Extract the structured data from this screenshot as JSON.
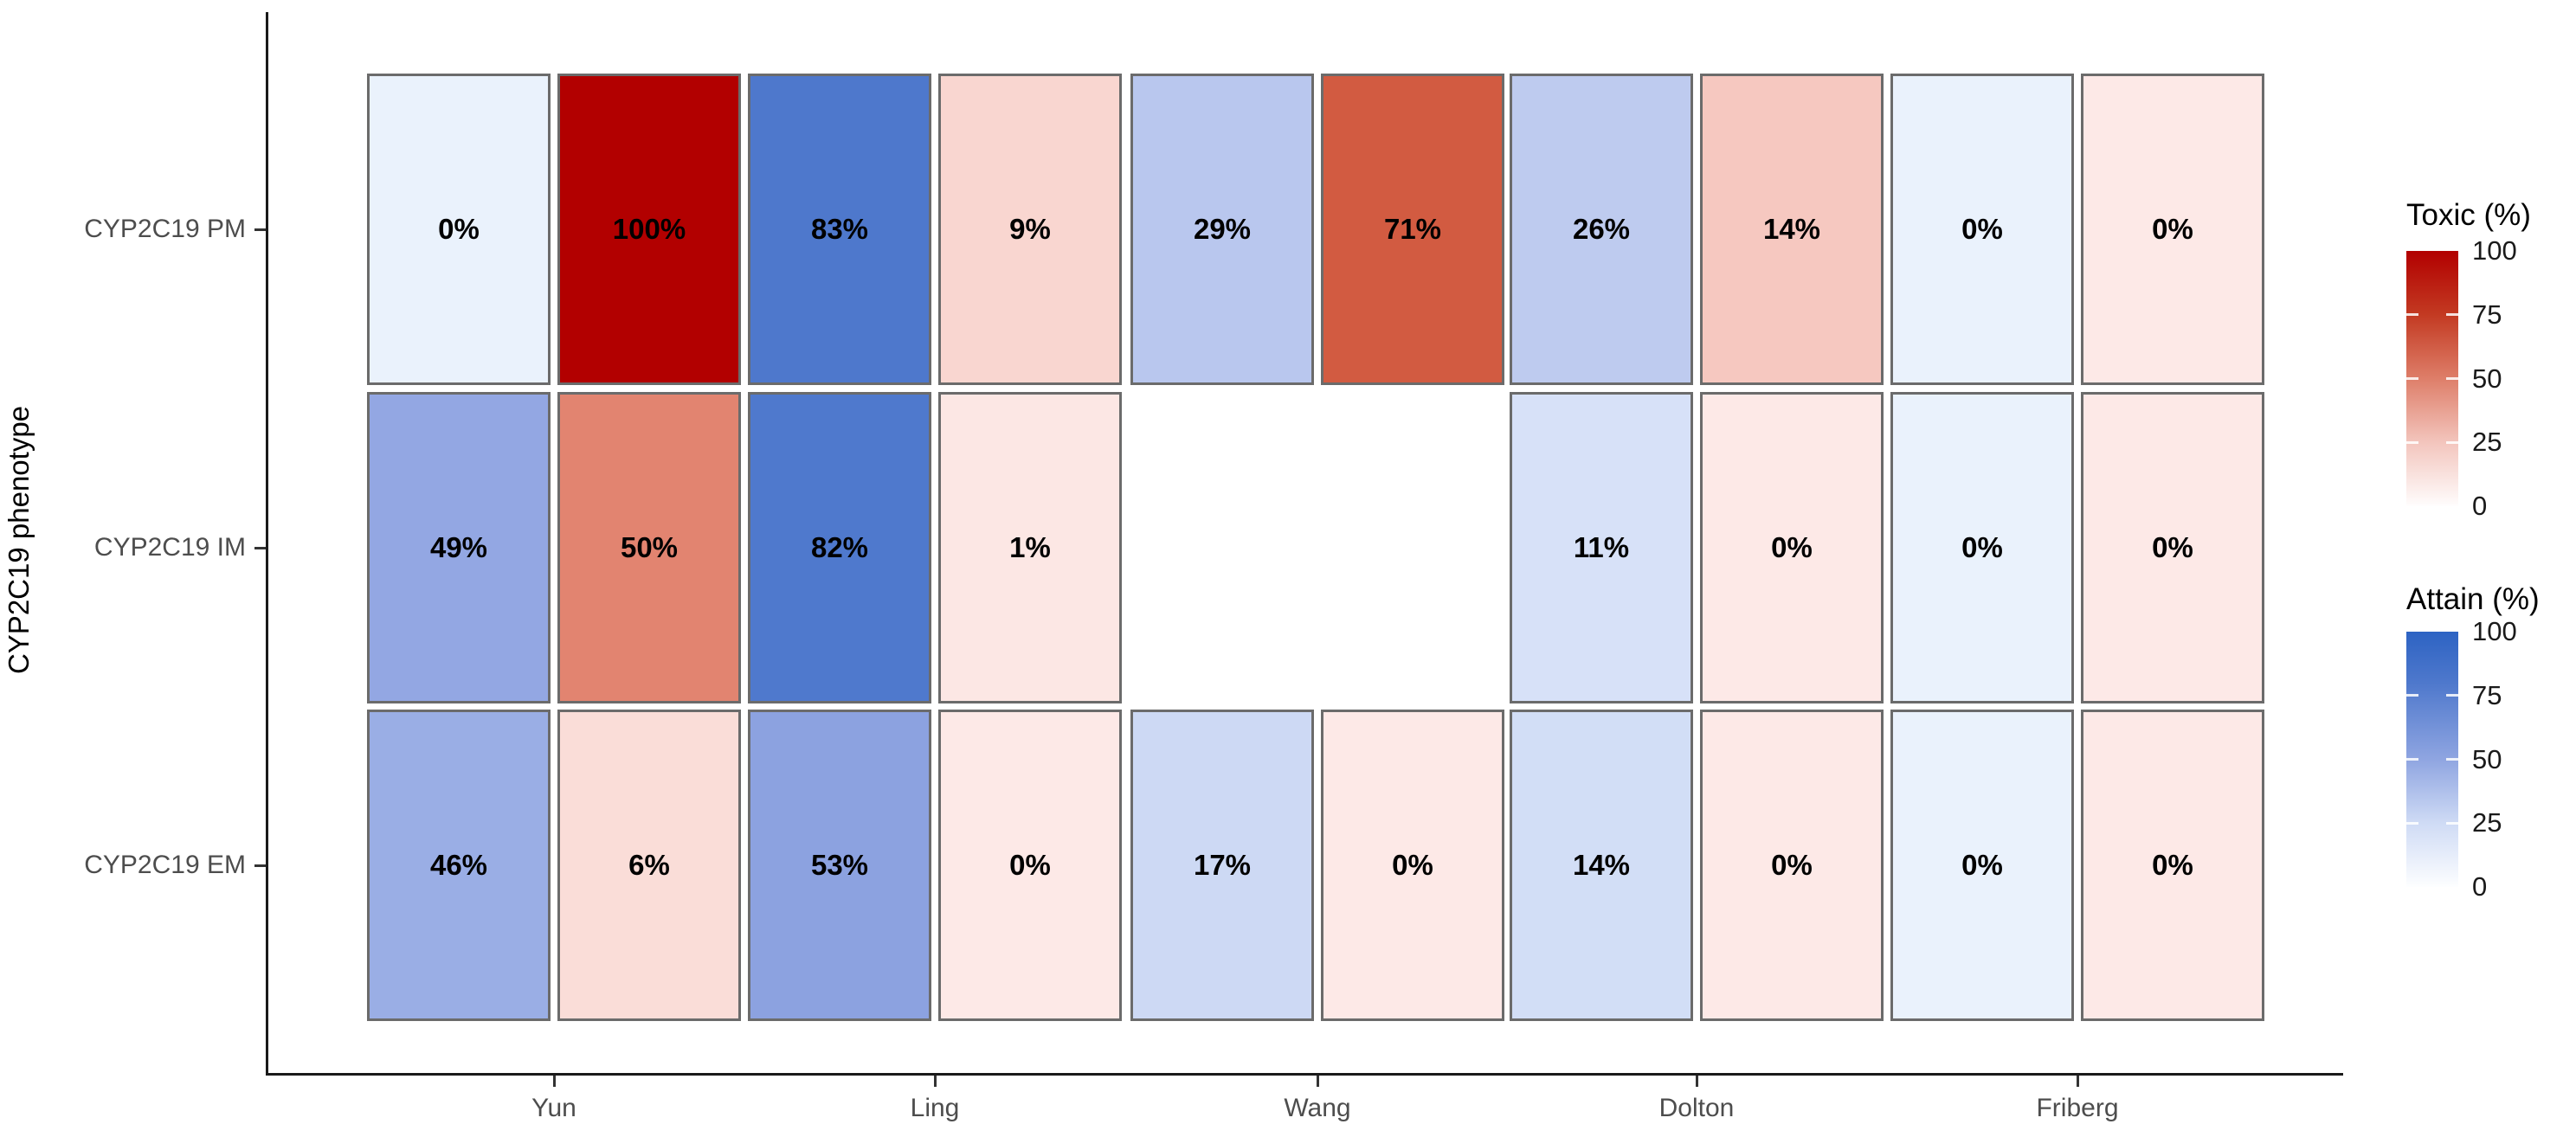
{
  "chart_data": {
    "type": "heatmap",
    "variant": "paired-tile-heatmap",
    "title": "",
    "xlabel": "",
    "ylabel": "CYP2C19 phenotype",
    "x_categories": [
      "Yun",
      "Ling",
      "Wang",
      "Dolton",
      "Friberg"
    ],
    "y_categories": [
      "CYP2C19 PM",
      "CYP2C19 IM",
      "CYP2C19 EM"
    ],
    "grid": "off",
    "legend_position": "right",
    "legends": [
      {
        "name": "toxic",
        "title": "Toxic (%)",
        "ticks": [
          100,
          75,
          50,
          25,
          0
        ],
        "range": [
          0,
          100
        ],
        "high_color": "#B20000",
        "low_color": "#FFFFFF"
      },
      {
        "name": "attain",
        "title": "Attain (%)",
        "ticks": [
          100,
          75,
          50,
          25,
          0
        ],
        "range": [
          0,
          100
        ],
        "high_color": "#2D63C3",
        "low_color": "#FFFFFF"
      }
    ],
    "cells": [
      {
        "phenotype": "CYP2C19 PM",
        "model": "Yun",
        "attain": 0,
        "attain_label": "0%",
        "attain_color": "#EAF2FC",
        "toxic": 100,
        "toxic_label": "100%",
        "toxic_color": "#B20000"
      },
      {
        "phenotype": "CYP2C19 PM",
        "model": "Ling",
        "attain": 83,
        "attain_label": "83%",
        "attain_color": "#4E78CC",
        "toxic": 9,
        "toxic_label": "9%",
        "toxic_color": "#F9D6D0"
      },
      {
        "phenotype": "CYP2C19 PM",
        "model": "Wang",
        "attain": 29,
        "attain_label": "29%",
        "attain_color": "#B9C7EE",
        "toxic": 71,
        "toxic_label": "71%",
        "toxic_color": "#D25B41"
      },
      {
        "phenotype": "CYP2C19 PM",
        "model": "Dolton",
        "attain": 26,
        "attain_label": "26%",
        "attain_color": "#BECBEF",
        "toxic": 14,
        "toxic_label": "14%",
        "toxic_color": "#F6C8C0"
      },
      {
        "phenotype": "CYP2C19 PM",
        "model": "Friberg",
        "attain": 0,
        "attain_label": "0%",
        "attain_color": "#EAF2FC",
        "toxic": 0,
        "toxic_label": "0%",
        "toxic_color": "#FDE9E7"
      },
      {
        "phenotype": "CYP2C19 IM",
        "model": "Yun",
        "attain": 49,
        "attain_label": "49%",
        "attain_color": "#93A7E3",
        "toxic": 50,
        "toxic_label": "50%",
        "toxic_color": "#E28470"
      },
      {
        "phenotype": "CYP2C19 IM",
        "model": "Ling",
        "attain": 82,
        "attain_label": "82%",
        "attain_color": "#4F79CD",
        "toxic": 1,
        "toxic_label": "1%",
        "toxic_color": "#FCE7E4"
      },
      {
        "phenotype": "CYP2C19 IM",
        "model": "Dolton",
        "attain": 11,
        "attain_label": "11%",
        "attain_color": "#D7E1F8",
        "toxic": 0,
        "toxic_label": "0%",
        "toxic_color": "#FDE9E7"
      },
      {
        "phenotype": "CYP2C19 IM",
        "model": "Friberg",
        "attain": 0,
        "attain_label": "0%",
        "attain_color": "#EAF2FC",
        "toxic": 0,
        "toxic_label": "0%",
        "toxic_color": "#FDE9E7"
      },
      {
        "phenotype": "CYP2C19 EM",
        "model": "Yun",
        "attain": 46,
        "attain_label": "46%",
        "attain_color": "#9AAEE5",
        "toxic": 6,
        "toxic_label": "6%",
        "toxic_color": "#FADDD8"
      },
      {
        "phenotype": "CYP2C19 EM",
        "model": "Ling",
        "attain": 53,
        "attain_label": "53%",
        "attain_color": "#8CA2E0",
        "toxic": 0,
        "toxic_label": "0%",
        "toxic_color": "#FDE9E7"
      },
      {
        "phenotype": "CYP2C19 EM",
        "model": "Wang",
        "attain": 17,
        "attain_label": "17%",
        "attain_color": "#CDD9F4",
        "toxic": 0,
        "toxic_label": "0%",
        "toxic_color": "#FDE9E7"
      },
      {
        "phenotype": "CYP2C19 EM",
        "model": "Dolton",
        "attain": 14,
        "attain_label": "14%",
        "attain_color": "#D2DEF6",
        "toxic": 0,
        "toxic_label": "0%",
        "toxic_color": "#FDE9E7"
      },
      {
        "phenotype": "CYP2C19 EM",
        "model": "Friberg",
        "attain": 0,
        "attain_label": "0%",
        "attain_color": "#EAF2FC",
        "toxic": 0,
        "toxic_label": "0%",
        "toxic_color": "#FDE9E7"
      }
    ],
    "missing_cells": [
      {
        "phenotype": "CYP2C19 IM",
        "model": "Wang"
      }
    ]
  }
}
